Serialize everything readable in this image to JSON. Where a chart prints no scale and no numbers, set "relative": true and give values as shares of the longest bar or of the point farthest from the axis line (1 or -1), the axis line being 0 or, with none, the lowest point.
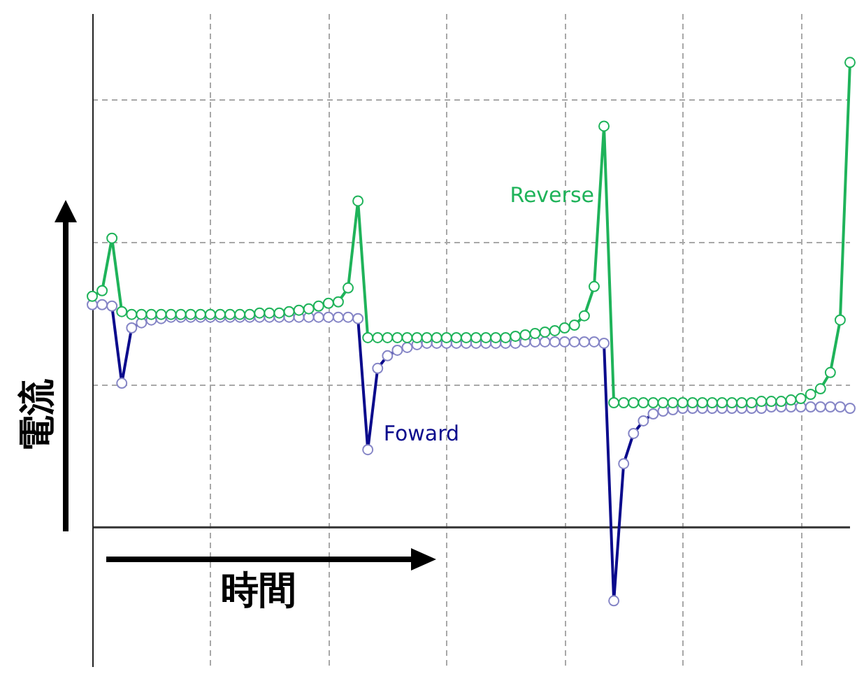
{
  "chart_data": {
    "type": "line",
    "relative": true,
    "xlabel": "時間",
    "ylabel": "電流",
    "grid": true,
    "legend": false,
    "marker": "circle",
    "line_style": "solid",
    "categories": [
      null,
      null,
      null,
      null,
      null,
      null,
      null,
      null,
      null,
      null,
      null,
      null,
      null,
      null,
      null,
      null,
      null,
      null,
      null,
      null,
      null,
      null,
      null,
      null,
      null,
      null,
      null,
      null,
      null,
      null,
      null,
      null,
      null,
      null,
      null,
      null,
      null,
      null,
      null,
      null,
      null,
      null,
      null,
      null,
      null,
      null,
      null,
      null,
      null,
      null,
      null,
      null,
      null,
      null,
      null,
      null,
      null,
      null,
      null,
      null,
      null,
      null,
      null,
      null,
      null,
      null,
      null,
      null,
      null,
      null,
      null,
      null,
      null,
      null,
      null,
      null,
      null,
      null
    ],
    "series": [
      {
        "name": "Reverse",
        "color": "#1fb35a",
        "values": [
          0.497,
          0.509,
          0.622,
          0.464,
          0.458,
          0.458,
          0.458,
          0.458,
          0.458,
          0.458,
          0.458,
          0.458,
          0.458,
          0.458,
          0.458,
          0.458,
          0.458,
          0.461,
          0.461,
          0.461,
          0.464,
          0.467,
          0.47,
          0.476,
          0.482,
          0.485,
          0.515,
          0.702,
          0.408,
          0.408,
          0.408,
          0.408,
          0.408,
          0.408,
          0.408,
          0.408,
          0.408,
          0.408,
          0.408,
          0.408,
          0.408,
          0.408,
          0.408,
          0.411,
          0.414,
          0.417,
          0.42,
          0.423,
          0.429,
          0.435,
          0.455,
          0.518,
          0.863,
          0.268,
          0.268,
          0.268,
          0.268,
          0.268,
          0.268,
          0.268,
          0.268,
          0.268,
          0.268,
          0.268,
          0.268,
          0.268,
          0.268,
          0.268,
          0.271,
          0.271,
          0.271,
          0.274,
          0.277,
          0.286,
          0.298,
          0.333,
          0.446,
          1
        ]
      },
      {
        "name": "Foward",
        "color": "#0a0a8c",
        "values": [
          0.479,
          0.479,
          0.476,
          0.31,
          0.429,
          0.44,
          0.446,
          0.449,
          0.452,
          0.452,
          0.452,
          0.452,
          0.452,
          0.452,
          0.452,
          0.452,
          0.452,
          0.452,
          0.452,
          0.452,
          0.452,
          0.452,
          0.452,
          0.452,
          0.452,
          0.452,
          0.452,
          0.449,
          0.167,
          0.342,
          0.369,
          0.381,
          0.387,
          0.393,
          0.396,
          0.396,
          0.396,
          0.396,
          0.396,
          0.396,
          0.396,
          0.396,
          0.396,
          0.396,
          0.399,
          0.399,
          0.399,
          0.399,
          0.399,
          0.399,
          0.399,
          0.399,
          0.396,
          -0.158,
          0.137,
          0.202,
          0.229,
          0.244,
          0.25,
          0.253,
          0.256,
          0.256,
          0.256,
          0.256,
          0.256,
          0.256,
          0.256,
          0.256,
          0.256,
          0.259,
          0.259,
          0.259,
          0.259,
          0.259,
          0.259,
          0.259,
          0.259,
          0.256
        ]
      }
    ]
  }
}
